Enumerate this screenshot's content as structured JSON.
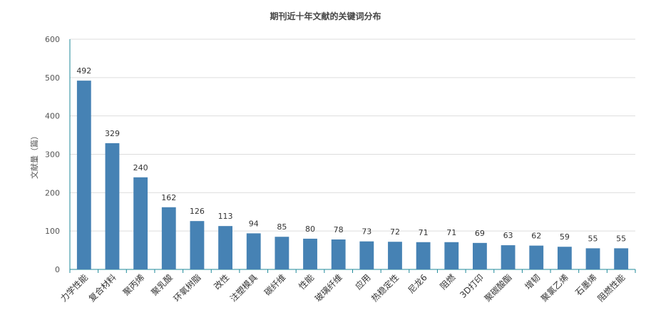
{
  "chart_data": {
    "type": "bar",
    "title": "期刊近十年文献的关键词分布",
    "ylabel": "文献量（篇）",
    "xlabel": "",
    "ylim": [
      0,
      600
    ],
    "yticks": [
      0,
      100,
      200,
      300,
      400,
      500,
      600
    ],
    "categories": [
      "力学性能",
      "复合材料",
      "聚丙烯",
      "聚乳酸",
      "环氧树脂",
      "改性",
      "注塑模具",
      "碳纤维",
      "性能",
      "玻璃纤维",
      "应用",
      "热稳定性",
      "尼龙6",
      "阻燃",
      "3D打印",
      "聚碳酸酯",
      "增韧",
      "聚氯乙烯",
      "石墨烯",
      "阻燃性能"
    ],
    "values": [
      492,
      329,
      240,
      162,
      126,
      113,
      94,
      85,
      80,
      78,
      73,
      72,
      71,
      71,
      69,
      63,
      62,
      59,
      55,
      55
    ],
    "bar_color": "#4682b4",
    "grid": true,
    "legend": "none"
  }
}
